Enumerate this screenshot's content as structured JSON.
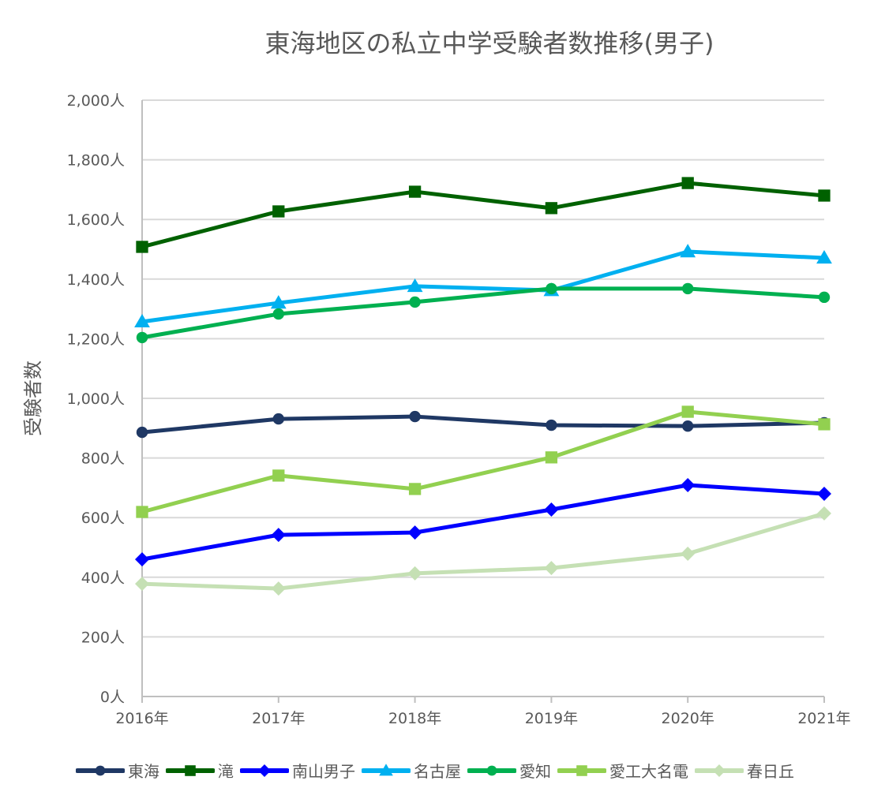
{
  "chart_data": {
    "type": "line",
    "title": "東海地区の私立中学受験者数推移(男子)",
    "xlabel": "",
    "ylabel": "受験者数",
    "categories": [
      "2016年",
      "2017年",
      "2018年",
      "2019年",
      "2020年",
      "2021年"
    ],
    "ylim": [
      0,
      2000
    ],
    "yticks": [
      0,
      200,
      400,
      600,
      800,
      1000,
      1200,
      1400,
      1600,
      1800,
      2000
    ],
    "ytick_labels": [
      "0人",
      "200人",
      "400人",
      "600人",
      "800人",
      "1,000人",
      "1,200人",
      "1,400人",
      "1,600人",
      "1,800人",
      "2,000人"
    ],
    "grid": true,
    "legend_position": "bottom",
    "series": [
      {
        "name": "東海",
        "color": "#1f3864",
        "marker": "circle",
        "values": [
          886,
          931,
          939,
          910,
          907,
          918
        ]
      },
      {
        "name": "滝",
        "color": "#006100",
        "marker": "square",
        "values": [
          1508,
          1627,
          1693,
          1638,
          1722,
          1680
        ]
      },
      {
        "name": "南山男子",
        "color": "#0000ff",
        "marker": "diamond",
        "values": [
          460,
          542,
          550,
          627,
          709,
          680
        ]
      },
      {
        "name": "名古屋",
        "color": "#00b0f0",
        "marker": "triangle",
        "values": [
          1257,
          1320,
          1376,
          1362,
          1492,
          1471
        ]
      },
      {
        "name": "愛知",
        "color": "#00b050",
        "marker": "circle",
        "values": [
          1204,
          1283,
          1323,
          1368,
          1368,
          1339
        ]
      },
      {
        "name": "愛工大名電",
        "color": "#92d050",
        "marker": "square",
        "values": [
          619,
          741,
          696,
          802,
          955,
          913
        ]
      },
      {
        "name": "春日丘",
        "color": "#c5e0b4",
        "marker": "diamond",
        "values": [
          378,
          362,
          413,
          431,
          479,
          614
        ]
      }
    ]
  }
}
